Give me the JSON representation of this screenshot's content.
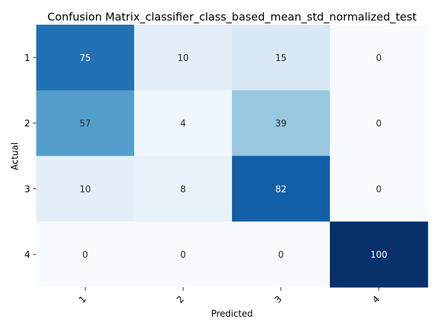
{
  "chart_data": {
    "type": "heatmap",
    "title": "Confusion Matrix_classifier_class_based_mean_std_normalized_test",
    "xlabel": "Predicted",
    "ylabel": "Actual",
    "x_categories": [
      "1",
      "2",
      "3",
      "4"
    ],
    "y_categories": [
      "1",
      "2",
      "3",
      "4"
    ],
    "values": [
      [
        75,
        10,
        15,
        0
      ],
      [
        57,
        4,
        39,
        0
      ],
      [
        10,
        8,
        82,
        0
      ],
      [
        0,
        0,
        0,
        100
      ]
    ],
    "vmin": 0,
    "vmax": 100,
    "colormap": "Blues",
    "color_low": "#f7fbff",
    "color_high": "#08306b",
    "colorbar": false,
    "annotations": true
  }
}
